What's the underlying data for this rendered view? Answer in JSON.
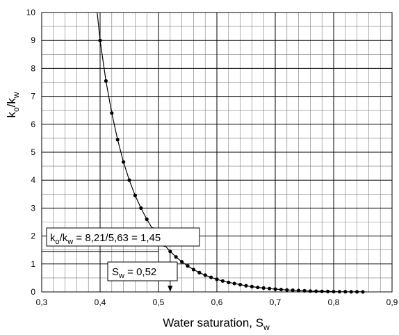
{
  "chart_data": {
    "type": "line",
    "xlabel": {
      "main": "Water saturation, S",
      "sub": "w"
    },
    "ylabel": {
      "k1": "k",
      "s1": "o",
      "sep": "/k",
      "s2": "w"
    },
    "xlim": [
      0.3,
      0.9
    ],
    "ylim": [
      0,
      10
    ],
    "grid": true,
    "x_tick_labels": [
      "0,3",
      "0,4",
      "0,5",
      "0,6",
      "0,7",
      "0,8",
      "0,9"
    ],
    "y_tick_labels": [
      "0",
      "1",
      "2",
      "3",
      "4",
      "5",
      "6",
      "7",
      "8",
      "9",
      "10"
    ],
    "series": [
      {
        "x": [
          0.4,
          0.41,
          0.42,
          0.43,
          0.44,
          0.45,
          0.46,
          0.47,
          0.48,
          0.49,
          0.5,
          0.51,
          0.52,
          0.53,
          0.54,
          0.55,
          0.56,
          0.57,
          0.58,
          0.59,
          0.6,
          0.61,
          0.62,
          0.63,
          0.64,
          0.65,
          0.66,
          0.67,
          0.68,
          0.69,
          0.7,
          0.71,
          0.72,
          0.73,
          0.74,
          0.75,
          0.76,
          0.77,
          0.78,
          0.79,
          0.8,
          0.81,
          0.82,
          0.83,
          0.84,
          0.85
        ],
        "y": [
          9.0,
          7.55,
          6.4,
          5.45,
          4.65,
          4.0,
          3.45,
          3.0,
          2.6,
          2.25,
          1.95,
          1.68,
          1.45,
          1.25,
          1.08,
          0.93,
          0.8,
          0.69,
          0.6,
          0.52,
          0.45,
          0.39,
          0.34,
          0.3,
          0.26,
          0.22,
          0.19,
          0.16,
          0.14,
          0.12,
          0.1,
          0.085,
          0.07,
          0.06,
          0.05,
          0.04,
          0.03,
          0.025,
          0.02,
          0.015,
          0.01,
          0.008,
          0.006,
          0.004,
          0.003,
          0.002
        ],
        "curve_extension": [
          [
            0.395,
            10.0
          ],
          [
            0.4,
            9.0
          ]
        ]
      }
    ],
    "annotations": {
      "ratio": {
        "k1": "k",
        "s1": "o",
        "sep": "/k",
        "s2": "w",
        "rest": " = 8,21/5,63 = 1,45",
        "x": 0.5,
        "y": 1.45
      },
      "saturation": {
        "main": "S",
        "sub": "w",
        "rest": "  = 0,52",
        "x": 0.52
      }
    }
  }
}
